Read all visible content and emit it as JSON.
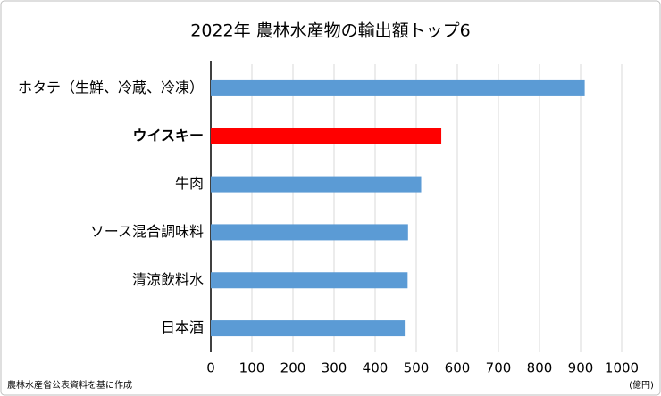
{
  "chart_data": {
    "type": "bar",
    "orientation": "horizontal",
    "title": "2022年 農林水産物の輸出額トップ6",
    "categories": [
      "ホタテ（生鮮、冷蔵、冷凍）",
      "ウイスキー",
      "牛肉",
      "ソース混合調味料",
      "清涼飲料水",
      "日本酒"
    ],
    "values": [
      910,
      561,
      512,
      480,
      479,
      472
    ],
    "colors": [
      "#5b9bd5",
      "#ff0000",
      "#5b9bd5",
      "#5b9bd5",
      "#5b9bd5",
      "#5b9bd5"
    ],
    "xlim": [
      0,
      1000
    ],
    "xticks": [
      0,
      100,
      200,
      300,
      400,
      500,
      600,
      700,
      800,
      900,
      1000
    ],
    "x_unit": "(億円)",
    "source": "農林水産省公表資料を基に作成",
    "grid": true
  }
}
